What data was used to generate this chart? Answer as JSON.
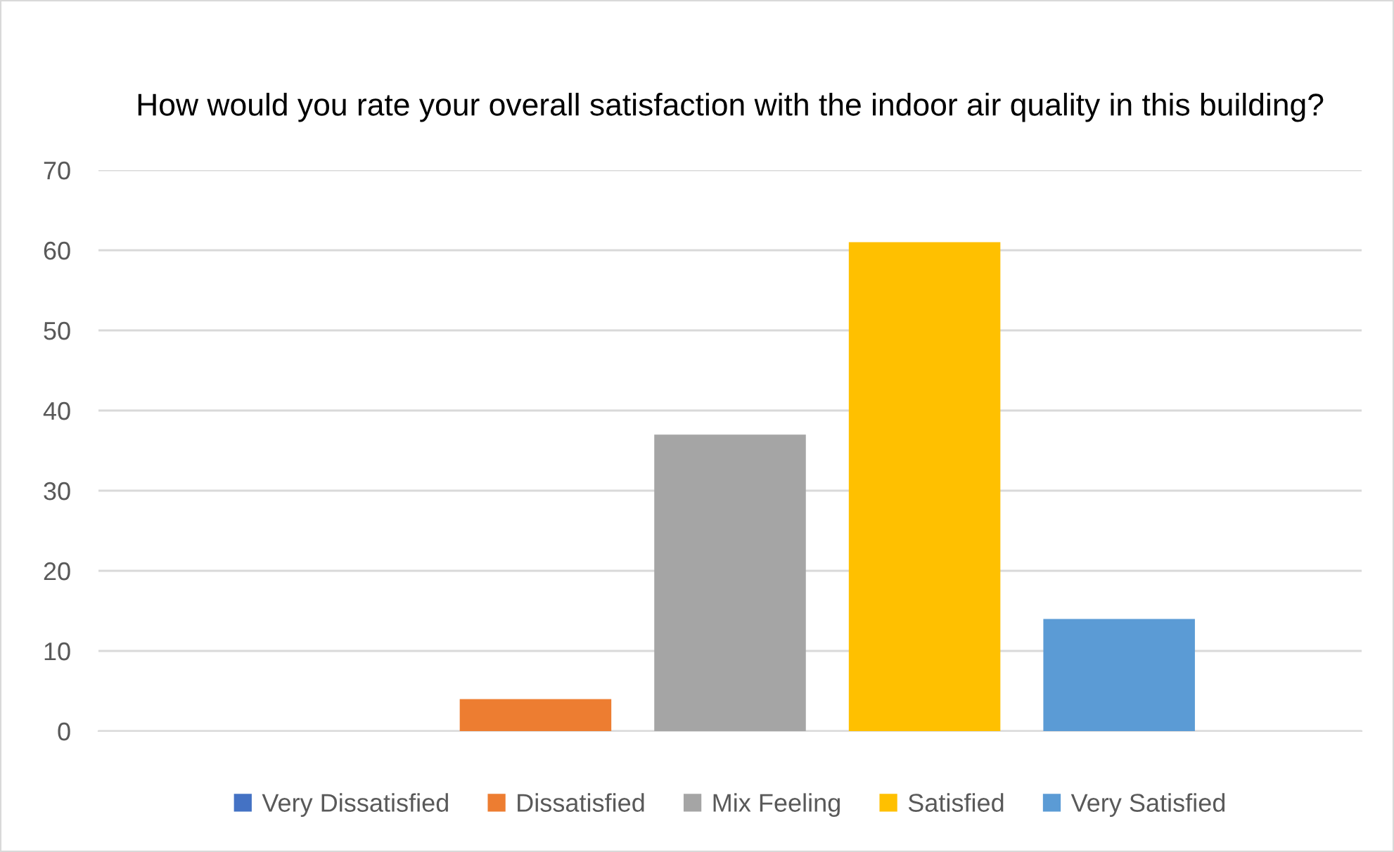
{
  "chart_data": {
    "type": "bar",
    "title": "How would you rate your overall satisfaction with the indoor air quality in this building?",
    "categories": [
      null
    ],
    "series": [
      {
        "name": "Very Dissatisfied",
        "color": "#4472c4",
        "values": [
          0
        ]
      },
      {
        "name": "Dissatisfied",
        "color": "#ed7d31",
        "values": [
          4
        ]
      },
      {
        "name": "Mix Feeling",
        "color": "#a5a5a5",
        "values": [
          37
        ]
      },
      {
        "name": "Satisfied",
        "color": "#ffc000",
        "values": [
          61
        ]
      },
      {
        "name": "Very Satisfied",
        "color": "#5b9bd5",
        "values": [
          14
        ]
      }
    ],
    "ylim": [
      0,
      70
    ],
    "yticks": [
      0,
      10,
      20,
      30,
      40,
      50,
      60,
      70
    ],
    "grid": "y",
    "legend": "bottom",
    "tick_labels": "y"
  }
}
